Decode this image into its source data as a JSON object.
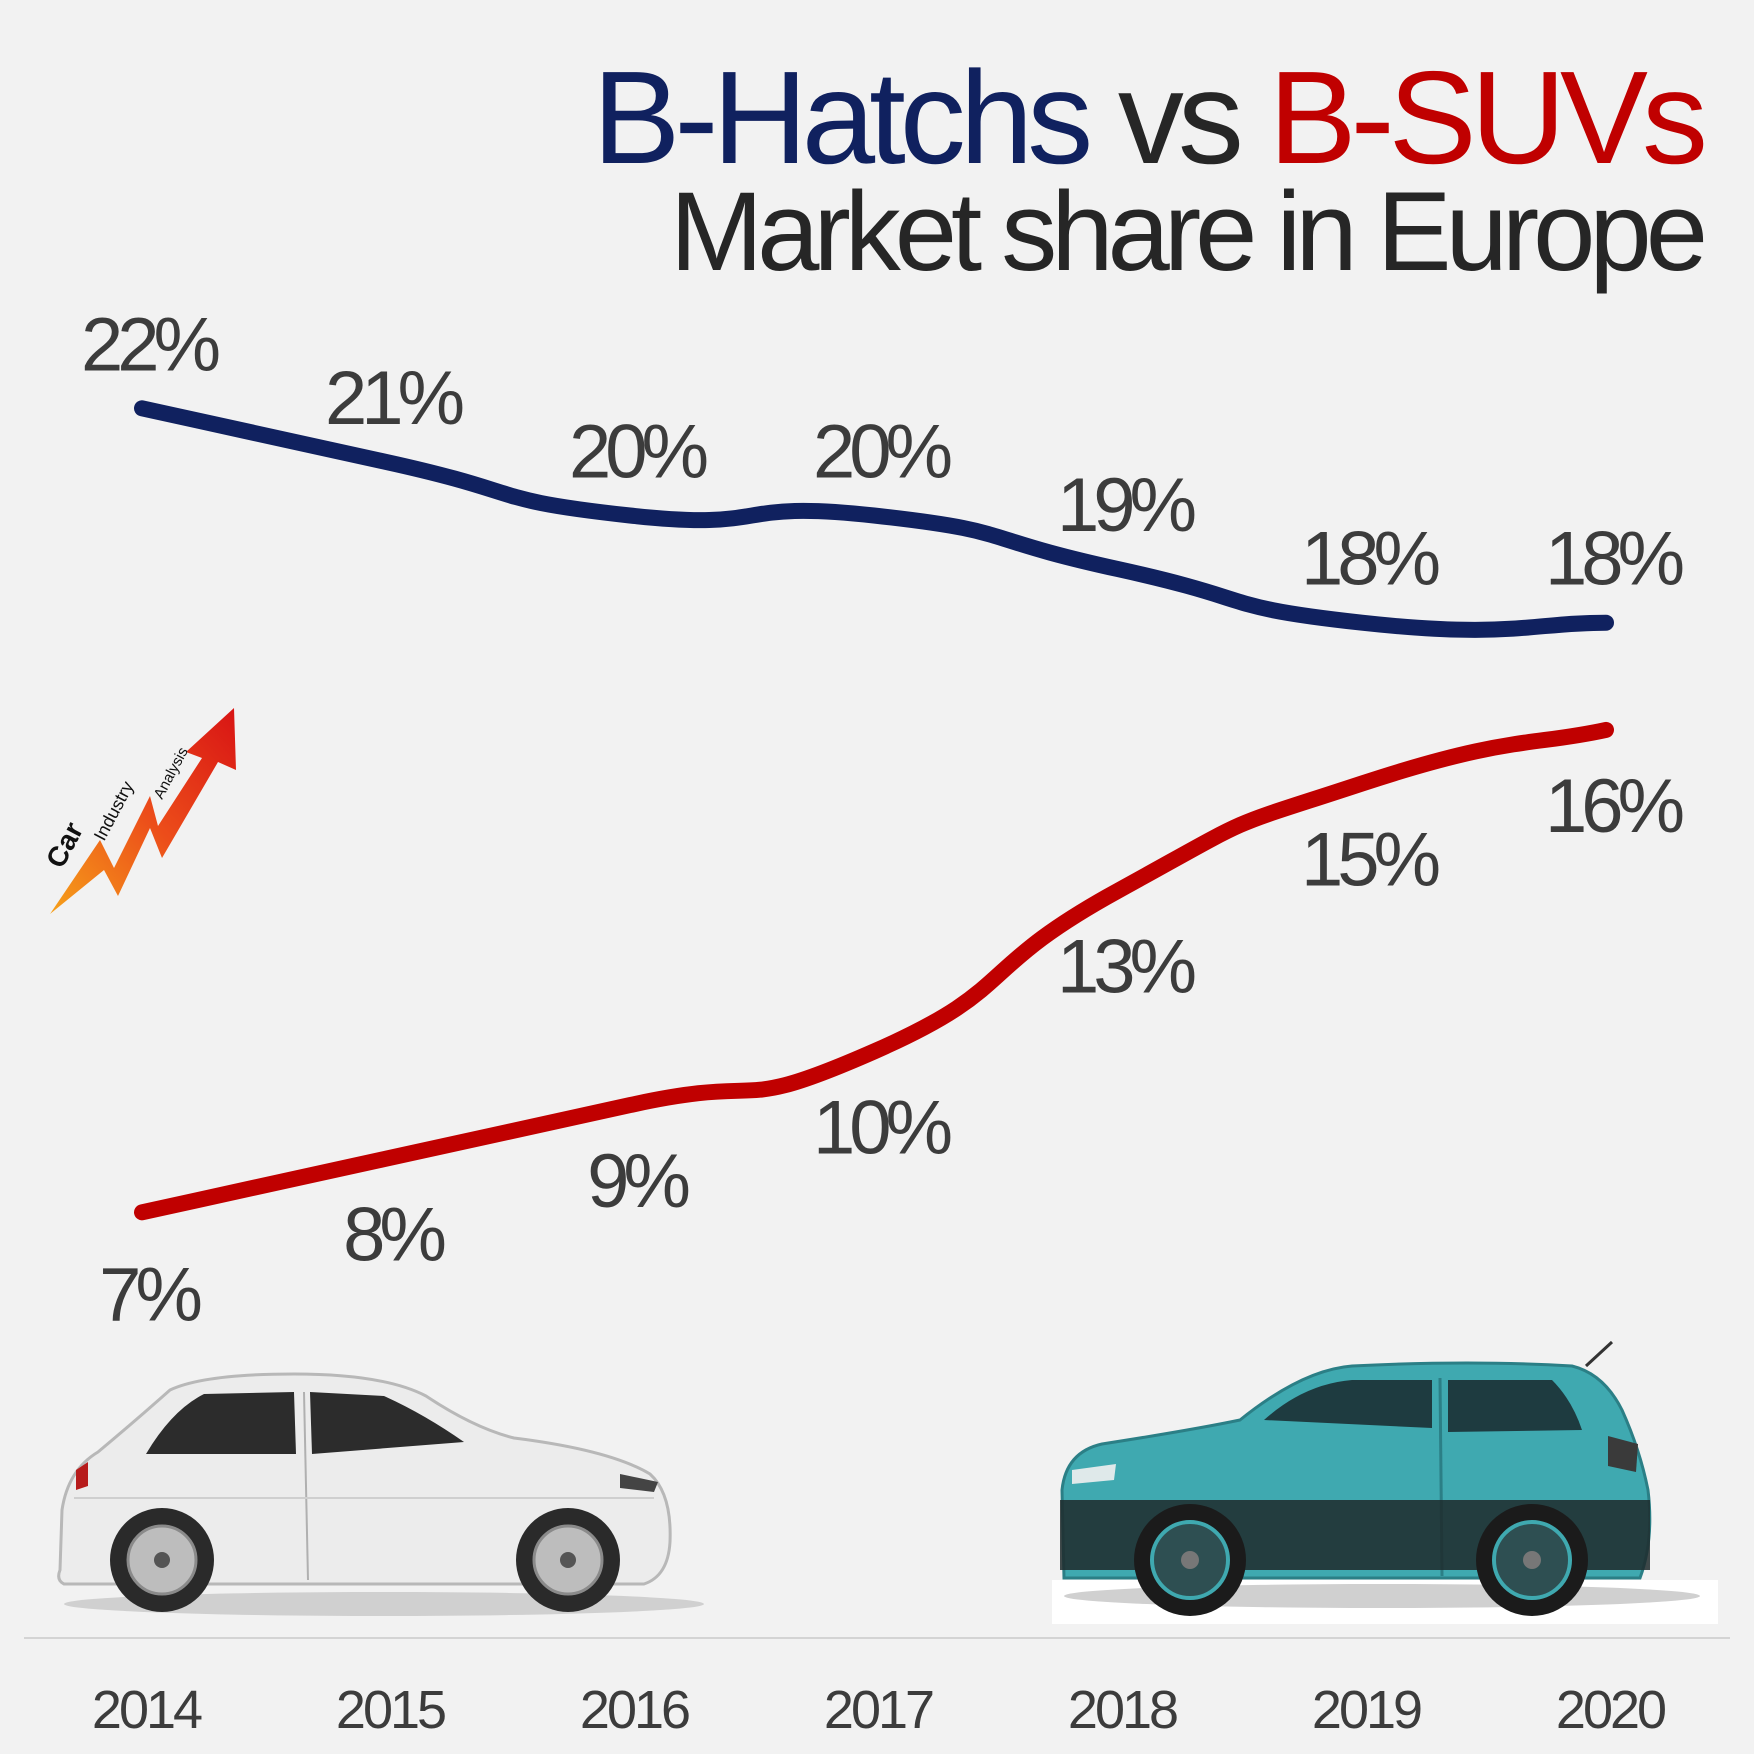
{
  "title": {
    "part1": "B-Hatchs",
    "part2": " vs ",
    "part3": "B-SUVs",
    "line2": "Market share in Europe"
  },
  "logo": {
    "word1": "Car",
    "word2": "Industry",
    "word3": "Analysis"
  },
  "images": {
    "left": "white-hatchback-car-image",
    "right": "teal-suv-car-image"
  },
  "chart_data": {
    "type": "line",
    "x": [
      "2014",
      "2015",
      "2016",
      "2017",
      "2018",
      "2019",
      "2020"
    ],
    "series": [
      {
        "name": "B-Hatchs",
        "color": "#10215f",
        "values": [
          22,
          21,
          20,
          20,
          19,
          18,
          18
        ],
        "labels": [
          "22%",
          "21%",
          "20%",
          "20%",
          "19%",
          "18%",
          "18%"
        ]
      },
      {
        "name": "B-SUVs",
        "color": "#c00000",
        "values": [
          7,
          8,
          9,
          10,
          13,
          15,
          16
        ],
        "labels": [
          "7%",
          "8%",
          "9%",
          "10%",
          "13%",
          "15%",
          "16%"
        ]
      }
    ],
    "y_unit": "%",
    "grid": false,
    "y_axis_shown": false
  }
}
